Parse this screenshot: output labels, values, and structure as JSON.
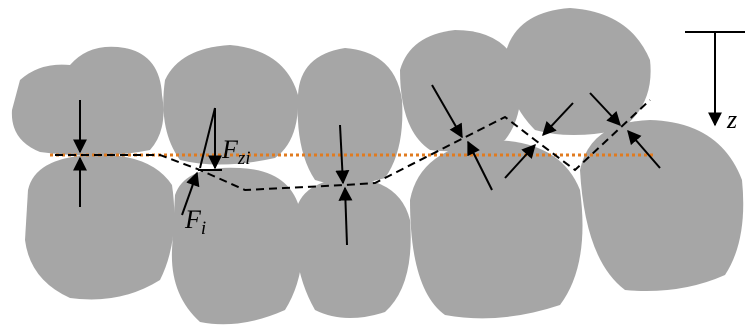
{
  "labels": [
    {
      "symbol": "F",
      "subscript": "zi"
    },
    {
      "symbol": "F",
      "subscript": "i"
    }
  ],
  "axis_label": "z"
}
